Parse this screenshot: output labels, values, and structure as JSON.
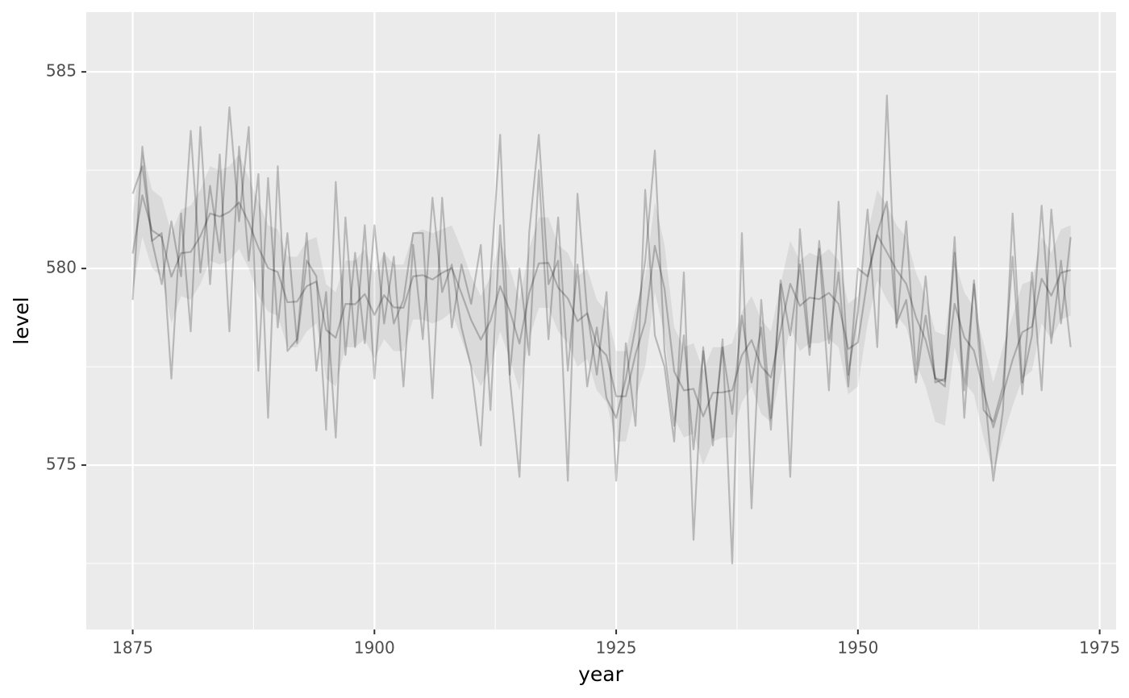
{
  "chart_data": {
    "type": "line",
    "xlabel": "year",
    "ylabel": "level",
    "x": [
      1875,
      1876,
      1877,
      1878,
      1879,
      1880,
      1881,
      1882,
      1883,
      1884,
      1885,
      1886,
      1887,
      1888,
      1889,
      1890,
      1891,
      1892,
      1893,
      1894,
      1895,
      1896,
      1897,
      1898,
      1899,
      1900,
      1901,
      1902,
      1903,
      1904,
      1905,
      1906,
      1907,
      1908,
      1909,
      1910,
      1911,
      1912,
      1913,
      1914,
      1915,
      1916,
      1917,
      1918,
      1919,
      1920,
      1921,
      1922,
      1923,
      1924,
      1925,
      1926,
      1927,
      1928,
      1929,
      1930,
      1931,
      1932,
      1933,
      1934,
      1935,
      1936,
      1937,
      1938,
      1939,
      1940,
      1941,
      1942,
      1943,
      1944,
      1945,
      1946,
      1947,
      1948,
      1949,
      1950,
      1951,
      1952,
      1953,
      1954,
      1955,
      1956,
      1957,
      1958,
      1959,
      1960,
      1961,
      1962,
      1963,
      1964,
      1965,
      1966,
      1967,
      1968,
      1969,
      1970,
      1971,
      1972
    ],
    "series": [
      {
        "color": "#000000",
        "values": [
          580.38,
          581.86,
          580.97,
          580.8,
          579.79,
          580.39,
          580.42,
          580.82,
          581.4,
          581.32,
          581.44,
          581.68,
          581.17,
          580.53,
          580.01,
          579.91,
          579.14,
          579.16,
          579.55,
          579.67,
          578.44,
          578.24,
          579.1,
          579.09,
          579.35,
          578.82,
          579.32,
          579.01,
          579.0,
          579.8,
          579.83,
          579.72,
          579.89,
          580.01,
          579.37,
          578.69,
          578.19,
          578.67,
          579.55,
          578.92,
          578.09,
          579.37,
          580.13,
          580.14,
          579.51,
          579.24,
          578.66,
          578.86,
          578.05,
          577.79,
          576.75,
          576.75,
          577.82,
          578.64,
          580.58,
          579.48,
          577.38,
          576.9,
          576.94,
          576.24,
          576.84,
          576.85,
          576.9,
          577.79,
          578.18,
          577.51,
          577.23,
          578.42,
          579.61,
          579.05,
          579.26,
          579.22,
          579.38,
          579.1,
          577.95,
          578.12,
          579.75,
          580.85,
          580.41,
          579.96,
          579.61,
          578.76,
          578.18,
          577.21,
          577.13,
          579.1,
          578.25,
          577.91,
          576.89,
          575.96,
          576.8,
          577.68,
          578.38,
          578.52,
          579.74,
          579.31,
          579.89,
          579.96
        ],
        "lower": [
          579.4,
          580.8,
          580.0,
          579.8,
          578.6,
          579.3,
          579.2,
          579.6,
          580.2,
          580.1,
          580.2,
          580.5,
          580.0,
          579.3,
          578.9,
          578.8,
          578.0,
          578.0,
          578.4,
          578.6,
          577.2,
          577.0,
          578.0,
          578.0,
          578.2,
          577.7,
          578.2,
          577.9,
          577.9,
          578.7,
          578.7,
          578.6,
          578.7,
          578.9,
          578.2,
          577.5,
          577.0,
          577.5,
          578.4,
          577.7,
          576.9,
          578.2,
          579.0,
          579.0,
          578.4,
          578.1,
          577.5,
          577.7,
          576.9,
          576.6,
          575.6,
          575.6,
          576.7,
          577.5,
          579.4,
          578.3,
          576.2,
          575.7,
          575.8,
          575.0,
          575.6,
          575.7,
          575.7,
          576.6,
          577.0,
          576.3,
          576.1,
          577.3,
          578.5,
          577.9,
          578.1,
          578.1,
          578.2,
          578.0,
          576.8,
          577.0,
          578.6,
          579.7,
          579.2,
          578.8,
          578.5,
          577.6,
          577.0,
          576.1,
          576.0,
          578.0,
          577.1,
          576.8,
          575.7,
          574.8,
          575.7,
          576.5,
          577.2,
          577.4,
          578.6,
          578.2,
          578.7,
          578.8
        ],
        "upper": [
          581.4,
          583.0,
          582.0,
          581.8,
          580.9,
          581.5,
          581.6,
          582.0,
          582.6,
          582.5,
          582.6,
          582.9,
          582.3,
          581.7,
          581.1,
          581.0,
          580.3,
          580.3,
          580.7,
          580.8,
          579.6,
          579.4,
          580.2,
          580.2,
          580.5,
          579.9,
          580.4,
          580.1,
          580.1,
          580.9,
          581.0,
          580.9,
          581.0,
          581.1,
          580.5,
          579.8,
          579.3,
          579.8,
          580.7,
          580.0,
          579.2,
          580.5,
          581.3,
          581.3,
          580.6,
          580.4,
          579.8,
          580.0,
          579.2,
          578.9,
          577.9,
          577.9,
          579.0,
          579.8,
          581.7,
          580.6,
          578.5,
          578.0,
          578.1,
          577.4,
          578.0,
          578.0,
          578.1,
          578.9,
          579.3,
          578.7,
          578.4,
          579.6,
          580.7,
          580.2,
          580.4,
          580.3,
          580.5,
          580.2,
          579.1,
          579.3,
          580.9,
          582.0,
          581.6,
          581.1,
          580.8,
          579.9,
          579.3,
          578.4,
          578.3,
          580.2,
          579.4,
          579.0,
          578.1,
          577.1,
          578.0,
          578.8,
          579.6,
          579.7,
          580.8,
          580.4,
          581.0,
          581.1
        ]
      },
      {
        "color": "#000000",
        "values": [
          581.9,
          582.6,
          580.7,
          579.6,
          581.2,
          579.8,
          583.5,
          579.9,
          582.1,
          580.4,
          584.1,
          581.2,
          583.6,
          577.4,
          582.3,
          578.5,
          580.9,
          578.1,
          580.2,
          579.8,
          575.9,
          582.2,
          577.8,
          580.4,
          578.1,
          581.1,
          578.6,
          580.3,
          577.0,
          580.6,
          578.2,
          581.8,
          579.4,
          580.1,
          578.5,
          577.5,
          575.5,
          579.8,
          583.4,
          577.2,
          574.7,
          580.9,
          583.4,
          579.6,
          580.2,
          574.6,
          581.9,
          578.9,
          577.3,
          579.4,
          574.6,
          578.1,
          576.0,
          582.0,
          578.3,
          577.5,
          575.6,
          579.9,
          573.1,
          578.0,
          575.5,
          578.2,
          572.5,
          580.9,
          573.9,
          579.2,
          576.2,
          579.6,
          574.7,
          581.0,
          578.0,
          580.5,
          576.9,
          581.7,
          577.3,
          578.9,
          581.5,
          578.0,
          584.4,
          578.6,
          579.2,
          577.1,
          578.8,
          577.2,
          577.0,
          580.8,
          576.2,
          579.7,
          577.1,
          574.6,
          576.4,
          581.4,
          577.1,
          578.3,
          581.6,
          578.1,
          580.2,
          578.0
        ]
      },
      {
        "color": "#000000",
        "values": [
          579.2,
          583.1,
          580.7,
          580.9,
          577.2,
          581.4,
          578.4,
          583.6,
          579.6,
          582.9,
          578.4,
          583.1,
          580.2,
          582.4,
          576.2,
          582.6,
          577.9,
          578.2,
          580.9,
          577.4,
          579.4,
          575.7,
          581.3,
          578.0,
          581.1,
          577.2,
          580.4,
          578.6,
          579.2,
          580.9,
          580.9,
          576.7,
          581.8,
          578.5,
          580.1,
          579.1,
          580.6,
          576.4,
          581.1,
          577.3,
          580.0,
          577.8,
          582.5,
          578.2,
          581.3,
          577.4,
          580.1,
          577.0,
          578.5,
          576.7,
          576.2,
          577.2,
          578.5,
          580.2,
          583.0,
          577.9,
          576.0,
          578.3,
          575.4,
          577.9,
          575.7,
          578.0,
          576.3,
          578.8,
          577.1,
          578.5,
          575.9,
          579.7,
          578.3,
          580.1,
          577.8,
          580.7,
          578.1,
          579.9,
          577.0,
          580.0,
          579.8,
          580.9,
          581.7,
          578.5,
          581.2,
          577.3,
          579.8,
          577.1,
          577.2,
          580.4,
          576.9,
          579.6,
          576.4,
          576.1,
          577.0,
          580.3,
          576.8,
          579.9,
          576.9,
          581.5,
          578.6,
          580.8
        ]
      }
    ],
    "line_alpha": 0.22,
    "ribbon_alpha": 0.07,
    "xlim": [
      1870.2,
      1976.7
    ],
    "ylim": [
      570.82,
      586.52
    ],
    "xticks": [
      1875,
      1900,
      1925,
      1950,
      1975
    ],
    "yticks": [
      575,
      580,
      585
    ],
    "xminor": [
      1887.5,
      1912.5,
      1937.5,
      1962.5
    ],
    "yminor": [
      572.5,
      577.5,
      582.5
    ],
    "grid": true,
    "panel_color": "#ebebeb"
  }
}
